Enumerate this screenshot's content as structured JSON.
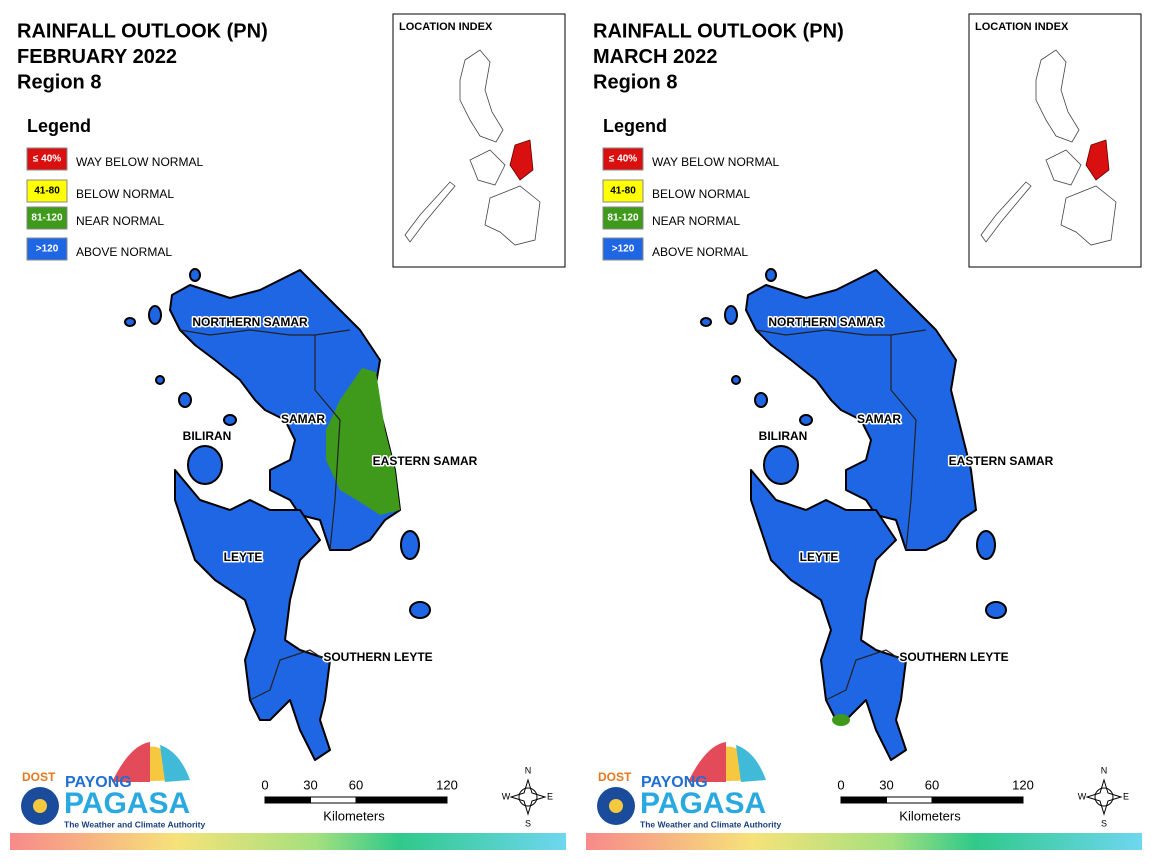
{
  "panels": [
    {
      "title": [
        "RAINFALL OUTLOOK (PN)",
        "FEBRUARY 2022",
        "Region 8"
      ],
      "legend": {
        "title": "Legend",
        "items": [
          {
            "label": "≤ 40%",
            "text": "WAY BELOW NORMAL",
            "color": "#d81010"
          },
          {
            "label": "41-80",
            "text": "BELOW NORMAL",
            "color": "#ffff00"
          },
          {
            "label": "81-120",
            "text": "NEAR NORMAL",
            "color": "#3f9a1c"
          },
          {
            "label": ">120",
            "text": "ABOVE NORMAL",
            "color": "#1f66e5"
          }
        ]
      },
      "index_title": "LOCATION INDEX",
      "provinces": [
        "NORTHERN SAMAR",
        "SAMAR",
        "EASTERN SAMAR",
        "BILIRAN",
        "LEYTE",
        "SOUTHERN LEYTE"
      ],
      "scale": {
        "ticks": [
          0,
          30,
          60,
          120
        ],
        "unit": "Kilometers"
      },
      "compass": [
        "N",
        "E",
        "S",
        "W"
      ],
      "logo": {
        "dost": "DOST",
        "payong": "PAYONG",
        "pagasa": "PAGASA",
        "tagline": "The Weather and Climate Authority"
      }
    },
    {
      "title": [
        "RAINFALL OUTLOOK (PN)",
        "MARCH 2022",
        "Region 8"
      ],
      "legend": {
        "title": "Legend",
        "items": [
          {
            "label": "≤ 40%",
            "text": "WAY BELOW NORMAL",
            "color": "#d81010"
          },
          {
            "label": "41-80",
            "text": "BELOW NORMAL",
            "color": "#ffff00"
          },
          {
            "label": "81-120",
            "text": "NEAR NORMAL",
            "color": "#3f9a1c"
          },
          {
            "label": ">120",
            "text": "ABOVE NORMAL",
            "color": "#1f66e5"
          }
        ]
      },
      "index_title": "LOCATION INDEX",
      "provinces": [
        "NORTHERN SAMAR",
        "SAMAR",
        "EASTERN SAMAR",
        "BILIRAN",
        "LEYTE",
        "SOUTHERN LEYTE"
      ],
      "scale": {
        "ticks": [
          0,
          30,
          60,
          120
        ],
        "unit": "Kilometers"
      },
      "compass": [
        "N",
        "E",
        "S",
        "W"
      ],
      "logo": {
        "dost": "DOST",
        "payong": "PAYONG",
        "pagasa": "PAGASA",
        "tagline": "The Weather and Climate Authority"
      }
    }
  ]
}
